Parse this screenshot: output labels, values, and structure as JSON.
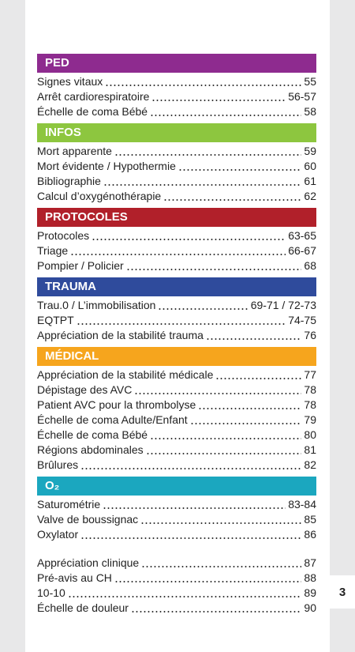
{
  "sections": [
    {
      "title": "PED",
      "color": "#8e2b8f",
      "entries": [
        {
          "label": "Signes vitaux",
          "page": "55"
        },
        {
          "label": "Arrêt cardiorespiratoire",
          "page": "56-57"
        },
        {
          "label": "Échelle de coma Bébé",
          "page": "58"
        }
      ]
    },
    {
      "title": "INFOS",
      "color": "#8dc63f",
      "entries": [
        {
          "label": "Mort apparente",
          "page": "59"
        },
        {
          "label": "Mort évidente / Hypothermie",
          "page": "60"
        },
        {
          "label": "Bibliographie",
          "page": "61"
        },
        {
          "label": "Calcul d’oxygénothérapie",
          "page": "62"
        }
      ]
    },
    {
      "title": "PROTOCOLES",
      "color": "#b1202a",
      "entries": [
        {
          "label": "Protocoles",
          "page": "63-65"
        },
        {
          "label": "Triage",
          "page": "66-67"
        },
        {
          "label": "Pompier / Policier",
          "page": "68"
        }
      ]
    },
    {
      "title": "TRAUMA",
      "color": "#2f4b9c",
      "entries": [
        {
          "label": "Trau.0 / L’immobilisation",
          "page": "69-71 / 72-73"
        },
        {
          "label": "EQTPT",
          "page": "74-75"
        },
        {
          "label": "Appréciation de la stabilité trauma",
          "page": "76"
        }
      ]
    },
    {
      "title": "MÉDICAL",
      "color": "#f6a51d",
      "entries": [
        {
          "label": "Appréciation de la stabilité médicale",
          "page": "77"
        },
        {
          "label": "Dépistage des AVC",
          "page": "78"
        },
        {
          "label": "Patient AVC pour la thrombolyse",
          "page": "78"
        },
        {
          "label": "Échelle de coma Adulte/Enfant",
          "page": "79"
        },
        {
          "label": "Échelle de coma Bébé",
          "page": "80"
        },
        {
          "label": "Régions abdominales",
          "page": "81"
        },
        {
          "label": "Brûlures",
          "page": "82"
        }
      ]
    },
    {
      "title": "O₂",
      "color": "#1ba7bf",
      "entries": [
        {
          "label": "Saturométrie",
          "page": "83-84"
        },
        {
          "label": "Valve de boussignac",
          "page": "85"
        },
        {
          "label": "Oxylator",
          "page": "86"
        }
      ]
    },
    {
      "entries": [
        {
          "label": "Appréciation clinique",
          "page": "87"
        },
        {
          "label": "Pré-avis au CH",
          "page": "88"
        },
        {
          "label": "10-10",
          "page": "89"
        },
        {
          "label": "Échelle de douleur",
          "page": "90"
        }
      ]
    }
  ],
  "page_number": "3"
}
